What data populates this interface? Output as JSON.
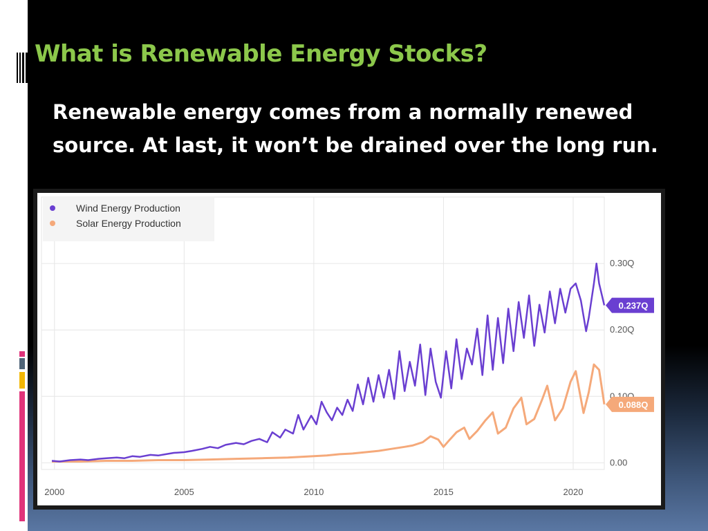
{
  "slide": {
    "title": "What is Renewable Energy Stocks?",
    "body": "Renewable energy comes from a normally renewed source. At last, it won’t be drained over the long run."
  },
  "colors": {
    "title": "#8cc84b",
    "wind": "#6a3fd1",
    "solar": "#f5a97a",
    "accent_pink": "#e0337a",
    "accent_slate": "#4f6478",
    "accent_yellow": "#f2b705"
  },
  "chart_data": {
    "type": "line",
    "legend_position": "top-left",
    "grid": true,
    "x_range": [
      1999.5,
      2021.2
    ],
    "y_range": [
      -0.01,
      0.4
    ],
    "x_ticks": [
      {
        "value": 2000,
        "label": "2000"
      },
      {
        "value": 2005,
        "label": "2005"
      },
      {
        "value": 2010,
        "label": "2010"
      },
      {
        "value": 2015,
        "label": "2015"
      },
      {
        "value": 2020,
        "label": "2020"
      }
    ],
    "y_ticks": [
      {
        "value": 0,
        "label": "0.00"
      },
      {
        "value": 0.1,
        "label": "0.10Q"
      },
      {
        "value": 0.2,
        "label": "0.20Q"
      },
      {
        "value": 0.3,
        "label": "0.30Q"
      }
    ],
    "series": [
      {
        "name": "Wind Energy Production",
        "color": "#6a3fd1",
        "last_label": "0.237Q",
        "last_value": 0.237,
        "x": [
          1999.9,
          2000.2,
          2000.6,
          2001.0,
          2001.3,
          2001.7,
          2002.0,
          2002.4,
          2002.7,
          2003.0,
          2003.3,
          2003.7,
          2004.0,
          2004.3,
          2004.6,
          2005.0,
          2005.3,
          2005.7,
          2006.0,
          2006.3,
          2006.6,
          2007.0,
          2007.3,
          2007.6,
          2007.9,
          2008.2,
          2008.4,
          2008.7,
          2008.9,
          2009.2,
          2009.4,
          2009.6,
          2009.9,
          2010.1,
          2010.3,
          2010.5,
          2010.7,
          2010.9,
          2011.1,
          2011.3,
          2011.5,
          2011.7,
          2011.9,
          2012.1,
          2012.3,
          2012.5,
          2012.7,
          2012.9,
          2013.1,
          2013.3,
          2013.5,
          2013.7,
          2013.9,
          2014.1,
          2014.3,
          2014.5,
          2014.7,
          2014.9,
          2015.1,
          2015.3,
          2015.5,
          2015.7,
          2015.9,
          2016.1,
          2016.3,
          2016.5,
          2016.7,
          2016.9,
          2017.1,
          2017.3,
          2017.5,
          2017.7,
          2017.9,
          2018.1,
          2018.3,
          2018.5,
          2018.7,
          2018.9,
          2019.1,
          2019.3,
          2019.5,
          2019.7,
          2019.9,
          2020.1,
          2020.3,
          2020.5,
          2020.6,
          2020.8,
          2020.9,
          2021.0,
          2021.2
        ],
        "y": [
          0.003,
          0.002,
          0.004,
          0.005,
          0.004,
          0.006,
          0.007,
          0.008,
          0.007,
          0.01,
          0.009,
          0.012,
          0.011,
          0.013,
          0.015,
          0.016,
          0.018,
          0.021,
          0.024,
          0.022,
          0.027,
          0.03,
          0.028,
          0.033,
          0.036,
          0.031,
          0.046,
          0.038,
          0.05,
          0.044,
          0.072,
          0.05,
          0.071,
          0.058,
          0.092,
          0.076,
          0.064,
          0.083,
          0.072,
          0.095,
          0.078,
          0.118,
          0.088,
          0.128,
          0.092,
          0.132,
          0.098,
          0.14,
          0.096,
          0.168,
          0.108,
          0.152,
          0.116,
          0.178,
          0.102,
          0.172,
          0.122,
          0.098,
          0.168,
          0.112,
          0.186,
          0.126,
          0.172,
          0.148,
          0.202,
          0.132,
          0.222,
          0.14,
          0.218,
          0.15,
          0.232,
          0.168,
          0.242,
          0.188,
          0.252,
          0.176,
          0.238,
          0.196,
          0.258,
          0.21,
          0.262,
          0.226,
          0.262,
          0.27,
          0.244,
          0.198,
          0.218,
          0.27,
          0.3,
          0.27,
          0.237
        ]
      },
      {
        "name": "Solar Energy Production",
        "color": "#f5a97a",
        "last_label": "0.088Q",
        "last_value": 0.088,
        "x": [
          1999.9,
          2001.0,
          2002.0,
          2003.0,
          2004.0,
          2005.0,
          2006.0,
          2007.0,
          2008.0,
          2009.0,
          2010.0,
          2010.5,
          2011.0,
          2011.5,
          2012.0,
          2012.5,
          2013.0,
          2013.5,
          2013.8,
          2014.2,
          2014.5,
          2014.8,
          2015.0,
          2015.2,
          2015.5,
          2015.8,
          2016.0,
          2016.3,
          2016.6,
          2016.9,
          2017.1,
          2017.4,
          2017.7,
          2018.0,
          2018.2,
          2018.5,
          2018.8,
          2019.0,
          2019.3,
          2019.6,
          2019.9,
          2020.1,
          2020.4,
          2020.6,
          2020.8,
          2021.0,
          2021.2
        ],
        "y": [
          0.002,
          0.002,
          0.003,
          0.003,
          0.004,
          0.004,
          0.005,
          0.006,
          0.007,
          0.008,
          0.01,
          0.011,
          0.013,
          0.014,
          0.016,
          0.018,
          0.021,
          0.024,
          0.026,
          0.031,
          0.04,
          0.035,
          0.024,
          0.033,
          0.046,
          0.053,
          0.036,
          0.048,
          0.063,
          0.076,
          0.044,
          0.053,
          0.082,
          0.098,
          0.058,
          0.066,
          0.095,
          0.116,
          0.064,
          0.082,
          0.122,
          0.138,
          0.075,
          0.106,
          0.148,
          0.14,
          0.088
        ]
      }
    ]
  }
}
